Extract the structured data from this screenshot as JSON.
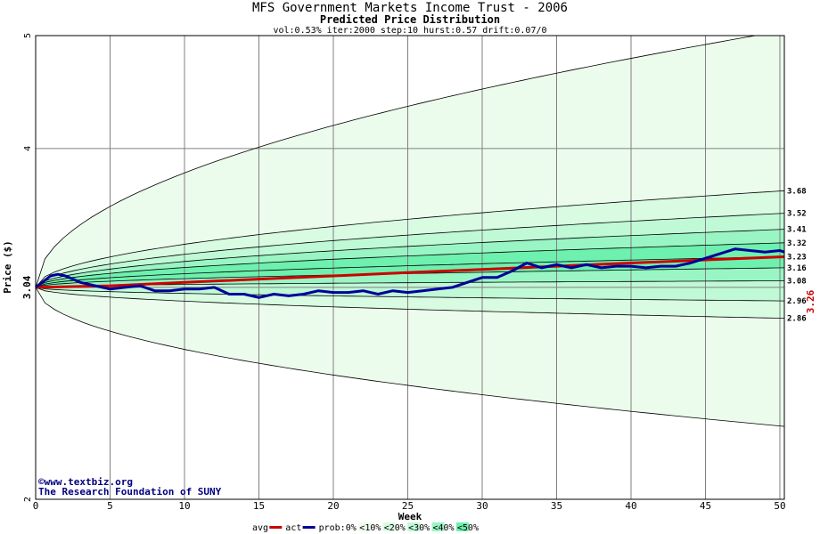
{
  "chart_data": {
    "type": "area",
    "title": "MFS Government Markets Income Trust - 2006",
    "subtitle": "Predicted Price Distribution",
    "params": "vol:0.53% iter:2000 step:10 hurst:0.57 drift:0.07/0",
    "xlabel": "Week",
    "ylabel": "Price ($)",
    "y_scale": "log",
    "xlim": [
      0,
      50.3
    ],
    "ylim": [
      2,
      5
    ],
    "x_ticks": [
      0,
      5,
      10,
      15,
      20,
      25,
      30,
      35,
      40,
      45,
      50
    ],
    "y_ticks": [
      2,
      3.04,
      4,
      5
    ],
    "grid": true,
    "start_price": 3.04,
    "current_price": "3.26",
    "right_labels": [
      "3.68",
      "3.52",
      "3.41",
      "3.32",
      "3.23",
      "3.16",
      "3.08",
      "2.96",
      "2.86"
    ],
    "bands": [
      {
        "name": "<10%",
        "color": "#ecfcec",
        "lower_end": 2.31,
        "upper_end": 5.05
      },
      {
        "name": "<20%",
        "color": "#d8fbe2",
        "lower_end": 2.86,
        "upper_end": 3.68
      },
      {
        "name": "<30%",
        "color": "#bff9d6",
        "lower_end": 2.96,
        "upper_end": 3.52
      },
      {
        "name": "<40%",
        "color": "#99f5c4",
        "lower_end": 3.08,
        "upper_end": 3.41
      },
      {
        "name": "<50%",
        "color": "#6ef0ae",
        "lower_end": 3.16,
        "upper_end": 3.32
      }
    ],
    "median_end": 3.23,
    "series": [
      {
        "name": "avg",
        "color": "#cc0000",
        "x": [
          0,
          5,
          10,
          15,
          20,
          25,
          30,
          35,
          40,
          45,
          50.3
        ],
        "y": [
          3.04,
          3.05,
          3.07,
          3.09,
          3.11,
          3.13,
          3.15,
          3.17,
          3.19,
          3.21,
          3.23
        ]
      },
      {
        "name": "act",
        "color": "#000099",
        "x": [
          0,
          1,
          1.5,
          2,
          3,
          4,
          5,
          6,
          7,
          8,
          9,
          10,
          11,
          12,
          13,
          14,
          15,
          16,
          17,
          18,
          19,
          20,
          21,
          22,
          23,
          24,
          25,
          26,
          27,
          28,
          29,
          30,
          31,
          32,
          33,
          34,
          35,
          36,
          37,
          38,
          39,
          40,
          41,
          42,
          43,
          44,
          45,
          46,
          47,
          48,
          49,
          50,
          50.3
        ],
        "y": [
          3.04,
          3.11,
          3.12,
          3.11,
          3.07,
          3.05,
          3.03,
          3.04,
          3.05,
          3.02,
          3.02,
          3.03,
          3.03,
          3.04,
          3.0,
          3.0,
          2.98,
          3.0,
          2.99,
          3.0,
          3.02,
          3.01,
          3.01,
          3.02,
          3.0,
          3.02,
          3.01,
          3.02,
          3.03,
          3.04,
          3.07,
          3.1,
          3.1,
          3.14,
          3.19,
          3.16,
          3.18,
          3.16,
          3.18,
          3.16,
          3.17,
          3.17,
          3.16,
          3.17,
          3.17,
          3.19,
          3.22,
          3.25,
          3.28,
          3.27,
          3.26,
          3.27,
          3.26
        ]
      }
    ],
    "legend": {
      "items": [
        "avg",
        "act",
        "prob:0%",
        "<10%",
        "<20%",
        "<30%",
        "<40%",
        "<50%"
      ],
      "placement": "bottom"
    },
    "credits": [
      "©www.textbiz.org",
      "The Research Foundation of SUNY"
    ]
  }
}
